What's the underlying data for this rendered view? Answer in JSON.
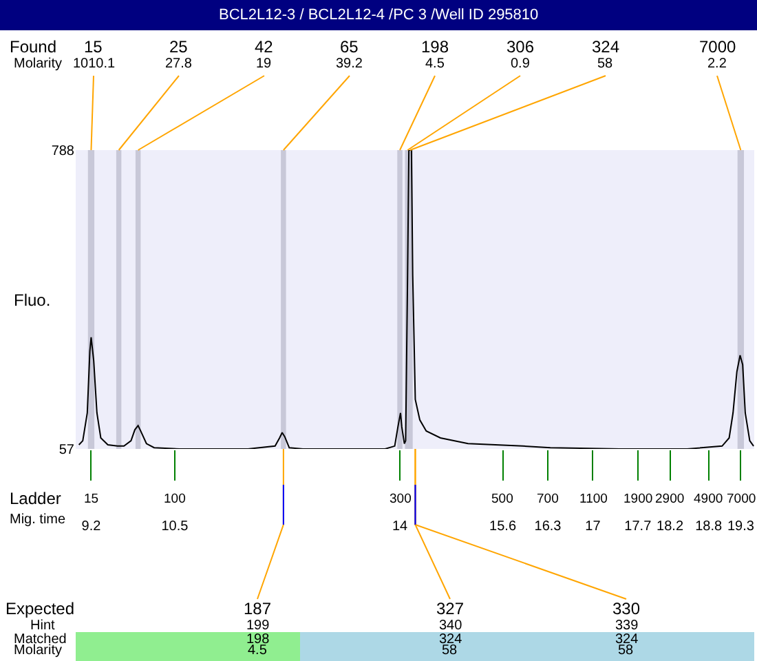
{
  "chart_data": {
    "type": "line",
    "title": "BCL2L12-3 / BCL2L12-4 /PC 3 /Well ID 295810",
    "ylabel": "Fluo.",
    "x": [
      9.01,
      9.07,
      9.14,
      9.18,
      9.2,
      9.24,
      9.29,
      9.35,
      9.46,
      9.61,
      9.71,
      9.82,
      9.88,
      9.93,
      9.97,
      10.06,
      10.18,
      10.57,
      11.64,
      12.06,
      12.13,
      12.17,
      12.21,
      12.28,
      12.49,
      13.77,
      13.92,
      13.97,
      14.01,
      14.03,
      14.07,
      14.09,
      14.12,
      14.14,
      14.16,
      14.18,
      14.2,
      14.24,
      14.31,
      14.41,
      14.63,
      15.06,
      15.91,
      16.34,
      17.41,
      18.47,
      19.01,
      19.12,
      19.18,
      19.24,
      19.29,
      19.33,
      19.37,
      19.44,
      19.5
    ],
    "series": [
      {
        "color": "#000000",
        "values": [
          67,
          77,
          145,
          296,
          330,
          273,
          145,
          84,
          67,
          64,
          64,
          77,
          104,
          114,
          101,
          70,
          60,
          57,
          57,
          64,
          84,
          97,
          87,
          60,
          57,
          57,
          64,
          111,
          145,
          111,
          70,
          77,
          482,
          788,
          788,
          788,
          482,
          178,
          128,
          101,
          84,
          70,
          64,
          60,
          57,
          57,
          64,
          84,
          145,
          246,
          286,
          263,
          145,
          77,
          64
        ]
      }
    ],
    "xlim": [
      8.96,
      19.51
    ],
    "ylim": [
      57,
      788
    ],
    "yticks": [
      57,
      788
    ],
    "xticks": [
      9.2,
      10.5,
      14,
      15.6,
      16.3,
      17,
      17.7,
      18.2,
      18.8,
      19.3
    ],
    "bands": [
      {
        "axis": "x",
        "from": 9.15,
        "to": 9.25,
        "color": "#c8c8d8"
      },
      {
        "axis": "x",
        "from": 9.59,
        "to": 9.67,
        "color": "#c8c8d8"
      },
      {
        "axis": "x",
        "from": 9.89,
        "to": 9.97,
        "color": "#c8c8d8"
      },
      {
        "axis": "x",
        "from": 12.15,
        "to": 12.23,
        "color": "#c8c8d8"
      },
      {
        "axis": "x",
        "from": 13.96,
        "to": 14.04,
        "color": "#c8c8d8"
      },
      {
        "axis": "x",
        "from": 14.08,
        "to": 14.2,
        "color": "#c8c8d8"
      },
      {
        "axis": "x",
        "from": 19.25,
        "to": 19.35,
        "color": "#c8c8d8"
      }
    ],
    "grid": false,
    "legend": false,
    "marker": "none",
    "line_style": "solid",
    "annotations": [
      "Found",
      "Molarity",
      {
        "text": "15",
        "x": 9.2,
        "y": 788
      },
      {
        "text": "25",
        "x": 9.63,
        "y": 788
      },
      {
        "text": "42",
        "x": 9.93,
        "y": 788
      },
      {
        "text": "65",
        "x": 12.19,
        "y": 788
      },
      {
        "text": "198",
        "x": 14.0,
        "y": 788
      },
      {
        "text": "306",
        "x": 14.12,
        "y": 788
      },
      {
        "text": "324",
        "x": 14.16,
        "y": 788
      },
      {
        "text": "7000",
        "x": 19.3,
        "y": 788
      },
      "1010.1",
      "27.8",
      "19",
      "39.2",
      "4.5",
      "0.9",
      "58",
      "2.2",
      "Ladder",
      "Mig. time",
      "Expected",
      "Hint",
      "Matched",
      "Molarity",
      {
        "text": "187",
        "x": 12.19,
        "y": 57
      },
      {
        "text": "327",
        "x": 14.24,
        "y": 57
      },
      {
        "text": "330",
        "x": 14.24,
        "y": 57
      },
      "199",
      "340",
      "339",
      "198",
      "324",
      "324",
      "4.5",
      "58",
      "58",
      "15",
      "100",
      "300",
      "500",
      "700",
      "1100",
      "1900",
      "2900",
      "4900",
      "7000"
    ]
  }
}
